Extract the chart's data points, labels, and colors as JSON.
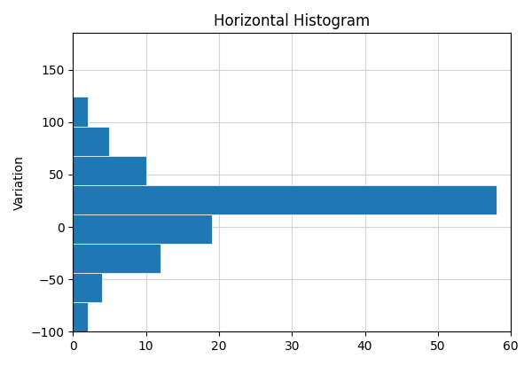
{
  "title": "Horizontal Histogram",
  "ylabel": "Variation",
  "xlabel": "",
  "xlim": [
    0,
    60
  ],
  "ylim": [
    -100,
    185
  ],
  "bar_color": "#1f77b4",
  "grid": true,
  "yticks": [
    -100,
    -50,
    0,
    50,
    100,
    150
  ],
  "xticks": [
    0,
    10,
    20,
    30,
    40,
    50,
    60
  ],
  "bin_edges": [
    -100,
    -72,
    -44,
    -16,
    12,
    40,
    68,
    96,
    124,
    152,
    180
  ],
  "counts": [
    2,
    4,
    12,
    19,
    58,
    10,
    5,
    2,
    0,
    0
  ]
}
